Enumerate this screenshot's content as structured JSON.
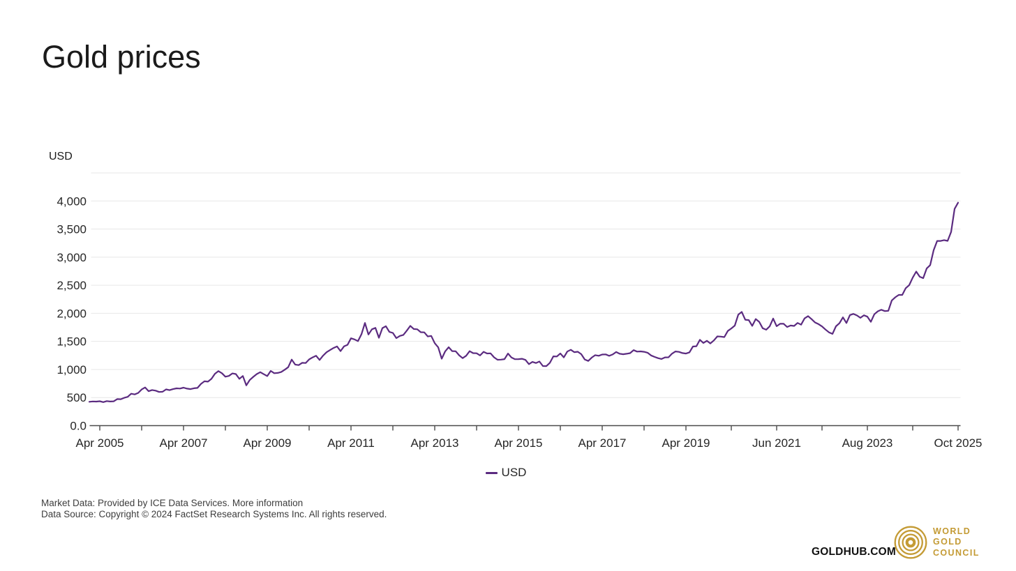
{
  "page": {
    "title": "Gold prices"
  },
  "chart": {
    "axis_unit_label": "USD",
    "legend": {
      "label": "USD"
    }
  },
  "footer": {
    "line1_prefix": "Market Data: Provided by ICE Data Services. ",
    "more_info_label": "More information",
    "line2": "Data Source: Copyright © 2024 FactSet Research Systems Inc. All rights reserved."
  },
  "branding": {
    "site": "GOLDHUB.COM",
    "logo_lines": [
      "WORLD",
      "GOLD",
      "COUNCIL"
    ],
    "logo_color": "#C49B35"
  },
  "colors": {
    "line": "#5B2B80",
    "gridline": "#e7e7e7",
    "axis": "#4a4a4a",
    "tick_text": "#262626"
  },
  "chart_data": {
    "type": "line",
    "title": "Gold prices",
    "ylabel": "USD",
    "legend_position": "bottom-center",
    "grid": "horizontal",
    "ylim": [
      0,
      4500
    ],
    "y_tick_step": 500,
    "y_ticks": [
      {
        "value": 0,
        "label": "0.0"
      },
      {
        "value": 500,
        "label": "500"
      },
      {
        "value": 1000,
        "label": "1,000"
      },
      {
        "value": 1500,
        "label": "1,500"
      },
      {
        "value": 2000,
        "label": "2,000"
      },
      {
        "value": 2500,
        "label": "2,500"
      },
      {
        "value": 3000,
        "label": "3,000"
      },
      {
        "value": 3500,
        "label": "3,500"
      },
      {
        "value": 4000,
        "label": "4,000"
      }
    ],
    "x_ticks": [
      {
        "month": 3,
        "label": "Apr 2005"
      },
      {
        "month": 27,
        "label": "Apr 2007"
      },
      {
        "month": 51,
        "label": "Apr 2009"
      },
      {
        "month": 75,
        "label": "Apr 2011"
      },
      {
        "month": 99,
        "label": "Apr 2013"
      },
      {
        "month": 123,
        "label": "Apr 2015"
      },
      {
        "month": 147,
        "label": "Apr 2017"
      },
      {
        "month": 171,
        "label": "Apr 2019"
      },
      {
        "month": 197,
        "label": "Jun 2021"
      },
      {
        "month": 223,
        "label": "Aug 2023"
      },
      {
        "month": 249,
        "label": "Oct 2025"
      }
    ],
    "series": [
      {
        "name": "USD",
        "color": "#5B2B80",
        "first_point": "Jan 2005",
        "interval": "monthly",
        "values": [
          424,
          431,
          428,
          435,
          418,
          437,
          429,
          433,
          473,
          470,
          495,
          513,
          569,
          556,
          582,
          644,
          680,
          613,
          634,
          623,
          599,
          603,
          646,
          632,
          651,
          664,
          661,
          677,
          659,
          650,
          665,
          672,
          743,
          789,
          783,
          833,
          923,
          971,
          933,
          871,
          885,
          930,
          918,
          833,
          884,
          718,
          814,
          869,
          919,
          952,
          916,
          883,
          975,
          934,
          939,
          955,
          995,
          1040,
          1175,
          1087,
          1078,
          1118,
          1115,
          1179,
          1215,
          1244,
          1169,
          1246,
          1307,
          1346,
          1383,
          1410,
          1327,
          1411,
          1439,
          1556,
          1536,
          1505,
          1628,
          1828,
          1622,
          1715,
          1740,
          1564,
          1737,
          1770,
          1668,
          1651,
          1558,
          1598,
          1615,
          1692,
          1776,
          1720,
          1715,
          1664,
          1661,
          1588,
          1598,
          1469,
          1394,
          1192,
          1323,
          1396,
          1327,
          1324,
          1253,
          1202,
          1244,
          1326,
          1291,
          1288,
          1250,
          1315,
          1285,
          1287,
          1216,
          1173,
          1175,
          1184,
          1283,
          1213,
          1183,
          1184,
          1190,
          1171,
          1095,
          1135,
          1115,
          1142,
          1061,
          1060,
          1118,
          1234,
          1232,
          1285,
          1215,
          1320,
          1351,
          1309,
          1316,
          1272,
          1178,
          1152,
          1212,
          1255,
          1244,
          1266,
          1269,
          1242,
          1267,
          1311,
          1280,
          1271,
          1280,
          1291,
          1345,
          1318,
          1322,
          1315,
          1298,
          1250,
          1224,
          1202,
          1187,
          1215,
          1217,
          1281,
          1321,
          1313,
          1292,
          1283,
          1305,
          1409,
          1414,
          1528,
          1472,
          1511,
          1463,
          1517,
          1589,
          1585,
          1577,
          1686,
          1730,
          1781,
          1976,
          2025,
          1886,
          1879,
          1777,
          1898,
          1848,
          1734,
          1708,
          1768,
          1907,
          1770,
          1814,
          1814,
          1757,
          1783,
          1775,
          1829,
          1797,
          1909,
          1950,
          1897,
          1837,
          1807,
          1766,
          1711,
          1661,
          1634,
          1769,
          1824,
          1928,
          1827,
          1969,
          1990,
          1963,
          1919,
          1965,
          1940,
          1849,
          1984,
          2036,
          2063,
          2040,
          2044,
          2230,
          2286,
          2327,
          2327,
          2448,
          2503,
          2635,
          2744,
          2651,
          2625,
          2798,
          2858,
          3124,
          3289,
          3289,
          3303,
          3290,
          3448,
          3859,
          3970
        ]
      }
    ]
  }
}
